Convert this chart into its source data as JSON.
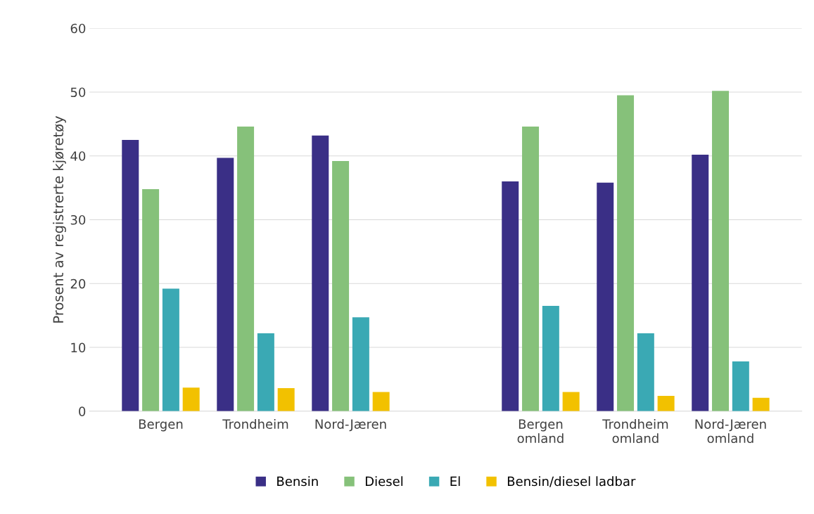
{
  "chart_data": {
    "type": "bar",
    "ylabel": "Prosent av registrerte kjøretøy",
    "categories": [
      "Bergen",
      "Trondheim",
      "Nord-Jæren",
      null,
      "Bergen\nomland",
      "Trondheim\nomland",
      "Nord-Jæren\nomland"
    ],
    "series": [
      {
        "name": "Bensin",
        "color": "#3a2f86",
        "values": [
          42.5,
          39.7,
          43.2,
          null,
          36.0,
          35.8,
          40.2
        ]
      },
      {
        "name": "Diesel",
        "color": "#86c17a",
        "values": [
          34.8,
          44.6,
          39.2,
          null,
          44.6,
          49.5,
          50.2
        ]
      },
      {
        "name": "El",
        "color": "#3aa9b4",
        "values": [
          19.2,
          12.2,
          14.7,
          null,
          16.5,
          12.2,
          7.8
        ]
      },
      {
        "name": "Bensin/diesel ladbar",
        "color": "#f2c100",
        "values": [
          3.7,
          3.6,
          3.0,
          null,
          3.0,
          2.4,
          2.1
        ]
      }
    ],
    "ylim": [
      0,
      60
    ],
    "yticks": [
      0,
      10,
      20,
      30,
      40,
      50,
      60
    ],
    "grid": "y",
    "legend": "bottom"
  }
}
